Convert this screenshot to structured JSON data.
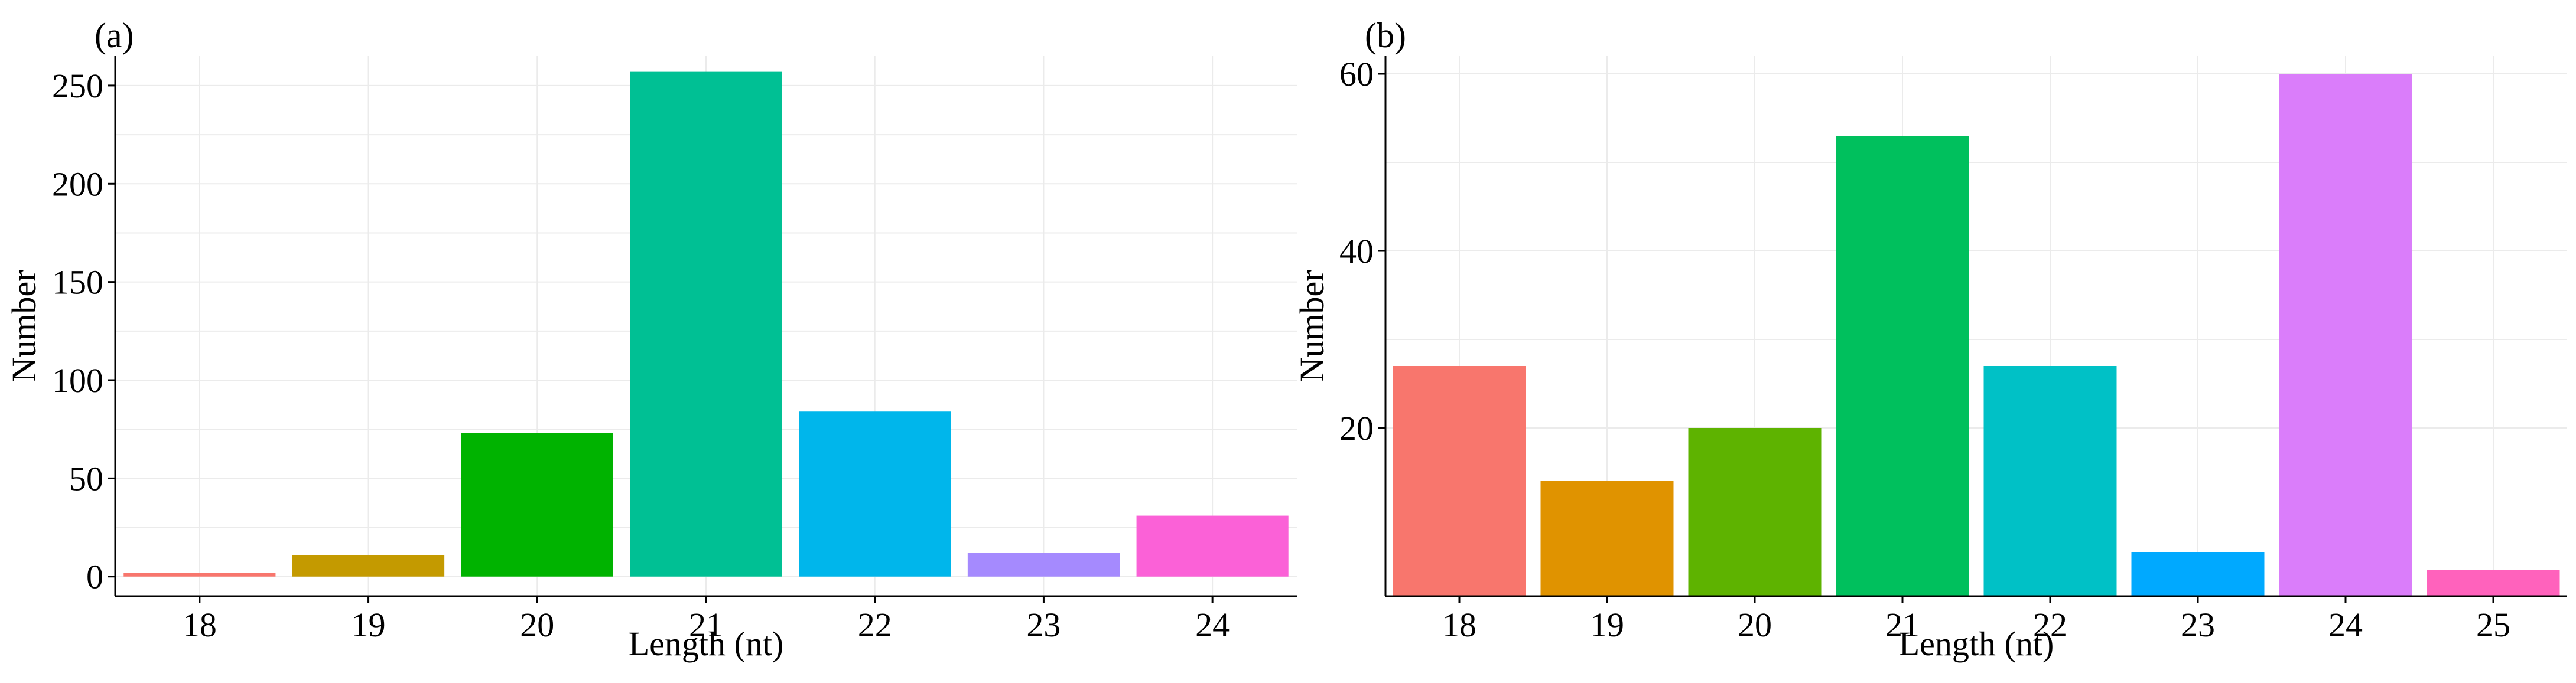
{
  "chart_data": [
    {
      "type": "bar",
      "panel_label": "(a)",
      "xlabel": "Length (nt)",
      "ylabel": "Number",
      "categories": [
        "18",
        "19",
        "20",
        "21",
        "22",
        "23",
        "24"
      ],
      "values": [
        2,
        11,
        73,
        257,
        84,
        12,
        31
      ],
      "colors": [
        "#f8766d",
        "#c49a00",
        "#00b300",
        "#00c094",
        "#00b6eb",
        "#a58afe",
        "#fb61d7"
      ],
      "yticks": [
        0,
        50,
        100,
        150,
        200,
        250
      ],
      "ytick_labels": [
        "0",
        "50",
        "100",
        "150",
        "200",
        "250"
      ],
      "ylim": [
        -10,
        265
      ],
      "grid": true,
      "legend": "none"
    },
    {
      "type": "bar",
      "panel_label": "(b)",
      "xlabel": "Length (nt)",
      "ylabel": "Number",
      "categories": [
        "18",
        "19",
        "20",
        "21",
        "22",
        "23",
        "24",
        "25"
      ],
      "values": [
        27,
        14,
        20,
        53,
        27,
        6,
        60,
        4
      ],
      "colors": [
        "#f8766d",
        "#e09300",
        "#5eb300",
        "#00c05d",
        "#00c1c6",
        "#00a9ff",
        "#da7dfa",
        "#ff62bc"
      ],
      "yticks": [
        20,
        40,
        60
      ],
      "ytick_labels": [
        "20",
        "40",
        "60"
      ],
      "ylim": [
        1,
        62
      ],
      "grid": true,
      "legend": "none"
    }
  ]
}
